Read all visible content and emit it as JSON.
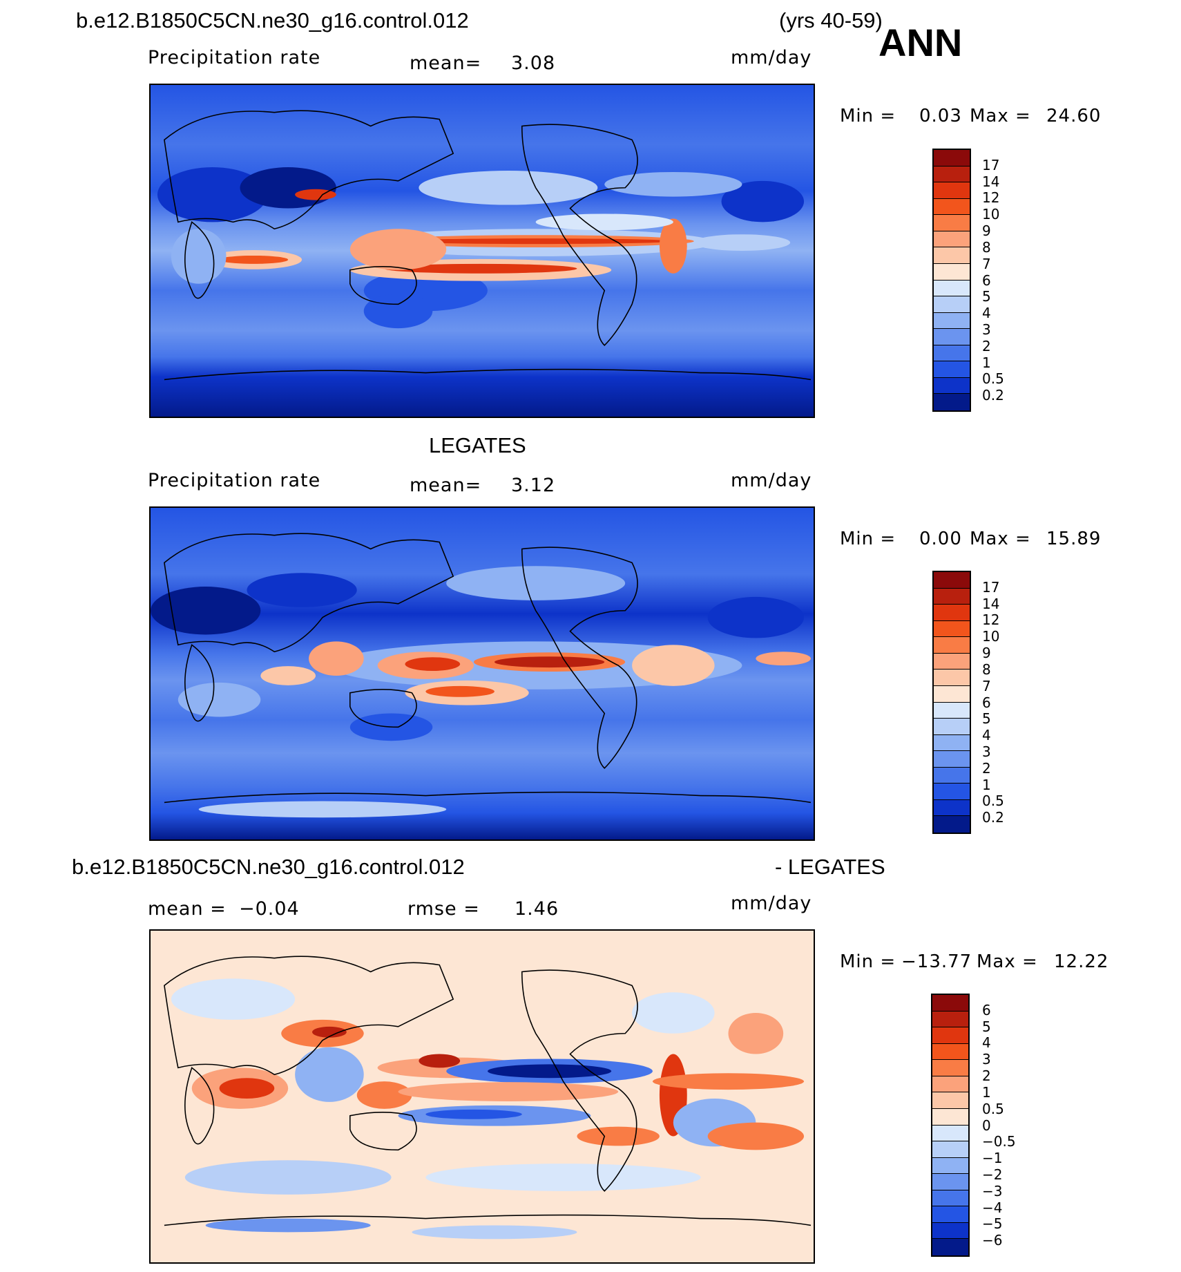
{
  "header": {
    "case_name": "b.e12.B1850C5CN.ne30_g16.control.012",
    "years": "(yrs 40-59)",
    "season": "ANN"
  },
  "panel1": {
    "variable": "Precipitation rate",
    "mean_label": "mean=",
    "mean_value": "3.08",
    "units": "mm/day",
    "min_label": "Min =",
    "min_value": "0.03",
    "max_label": "Max =",
    "max_value": "24.60"
  },
  "panel2": {
    "title": "LEGATES",
    "variable": "Precipitation rate",
    "mean_label": "mean=",
    "mean_value": "3.12",
    "units": "mm/day",
    "min_label": "Min =",
    "min_value": "0.00",
    "max_label": "Max =",
    "max_value": "15.89"
  },
  "panel3": {
    "title_left": "b.e12.B1850C5CN.ne30_g16.control.012",
    "title_right": "- LEGATES",
    "mean_label": "mean =",
    "mean_value": "−0.04",
    "rmse_label": "rmse =",
    "rmse_value": "1.46",
    "units": "mm/day",
    "min_label": "Min =",
    "min_value": "−13.77",
    "max_label": "Max =",
    "max_value": "12.22"
  },
  "colorbars": {
    "precip": {
      "labels": [
        "17",
        "14",
        "12",
        "10",
        "9",
        "8",
        "7",
        "6",
        "5",
        "4",
        "3",
        "2",
        "1",
        "0.5",
        "0.2"
      ],
      "colors": [
        "#8b0a0a",
        "#b8200e",
        "#e0360f",
        "#f2551c",
        "#f97c45",
        "#fba27b",
        "#fcc7a8",
        "#fde6d4",
        "#d8e7fb",
        "#b7cff7",
        "#8fb2f3",
        "#6b94ef",
        "#4675ea",
        "#2455e4",
        "#0d33c9",
        "#031a8a"
      ]
    },
    "diff": {
      "labels": [
        "6",
        "5",
        "4",
        "3",
        "2",
        "1",
        "0.5",
        "0",
        "−0.5",
        "−1",
        "−2",
        "−3",
        "−4",
        "−5",
        "−6"
      ],
      "colors": [
        "#8b0a0a",
        "#b8200e",
        "#e0360f",
        "#f2551c",
        "#f97c45",
        "#fba27b",
        "#fcc7a8",
        "#fde6d4",
        "#d8e7fb",
        "#b7cff7",
        "#8fb2f3",
        "#6b94ef",
        "#4675ea",
        "#2455e4",
        "#0d33c9",
        "#031a8a"
      ]
    }
  }
}
